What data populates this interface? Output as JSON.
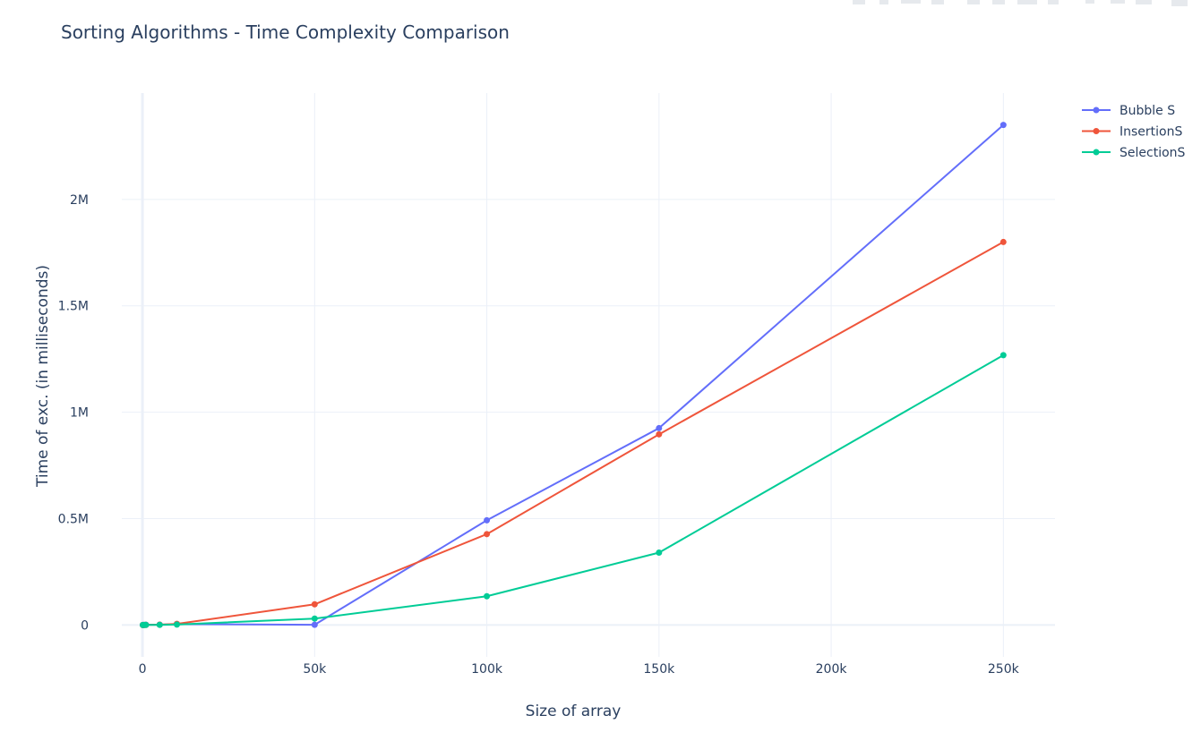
{
  "chart_data": {
    "type": "line",
    "title": "Sorting Algorithms - Time Complexity Comparison",
    "xlabel": "Size of array",
    "ylabel": "Time of exc. (in milliseconds)",
    "xlim": [
      -6000,
      265000
    ],
    "ylim": [
      -150000,
      2500000
    ],
    "x_ticks": [
      {
        "value": 0,
        "label": "0"
      },
      {
        "value": 50000,
        "label": "50k"
      },
      {
        "value": 100000,
        "label": "100k"
      },
      {
        "value": 150000,
        "label": "150k"
      },
      {
        "value": 200000,
        "label": "200k"
      },
      {
        "value": 250000,
        "label": "250k"
      }
    ],
    "y_ticks": [
      {
        "value": 0,
        "label": "0"
      },
      {
        "value": 500000,
        "label": "0.5M"
      },
      {
        "value": 1000000,
        "label": "1M"
      },
      {
        "value": 1500000,
        "label": "1.5M"
      },
      {
        "value": 2000000,
        "label": "2M"
      }
    ],
    "x": [
      100,
      500,
      1000,
      5000,
      10000,
      50000,
      100000,
      150000,
      250000
    ],
    "series": [
      {
        "name": "Bubble S",
        "color": "#636efa",
        "values": [
          0,
          300,
          900,
          1500,
          4000,
          1000,
          492000,
          925000,
          2350000
        ]
      },
      {
        "name": "InsertionS",
        "color": "#ef553b",
        "values": [
          0,
          100,
          300,
          1200,
          5000,
          97000,
          427000,
          896000,
          1800000
        ]
      },
      {
        "name": "SelectionS",
        "color": "#00cc96",
        "values": [
          0,
          100,
          200,
          600,
          2000,
          30000,
          135000,
          340000,
          1268000
        ]
      }
    ],
    "grid": true,
    "legend_position": "top-right"
  }
}
